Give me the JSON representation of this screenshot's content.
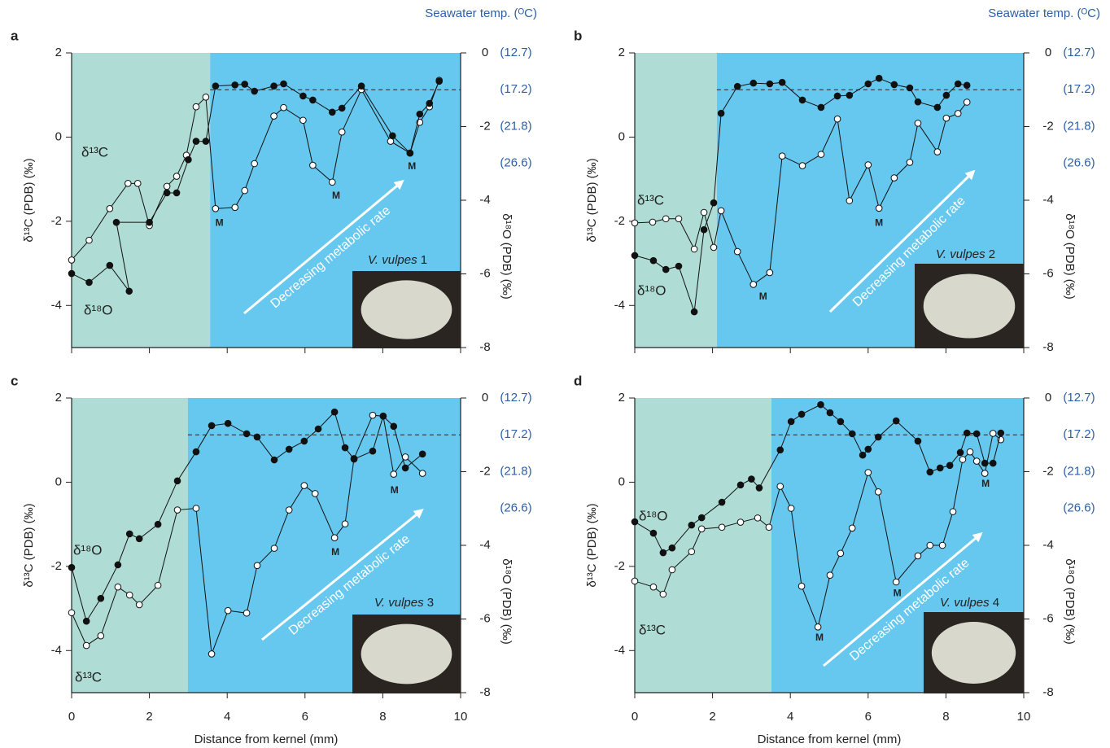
{
  "chart_data": [
    {
      "type": "line",
      "panel": "a",
      "y2title": "Seawater temp. (ᴼC)",
      "ylabel": "δ¹³C (PDB) (‰)",
      "y2label": "δ¹⁸O (PDB) (‰)",
      "xlim": [
        0,
        10
      ],
      "xticks": [
        0,
        2,
        4,
        6,
        8,
        10
      ],
      "xticklabels": false,
      "ylim": [
        -5,
        2
      ],
      "yticks": [
        -4,
        -2,
        0,
        2
      ],
      "y2lim": [
        -8,
        0
      ],
      "y2ticks": [
        -8,
        -6,
        -4,
        -2,
        0
      ],
      "temp_ticks": [
        {
          "value": 0,
          "label": "(12.7)"
        },
        {
          "value": -1,
          "label": "(17.2)"
        },
        {
          "value": -2,
          "label": "(21.8)"
        },
        {
          "value": -3,
          "label": "(26.6)"
        }
      ],
      "reference_line": {
        "value": -1,
        "axis": "y2"
      },
      "regions": [
        {
          "x": [
            0,
            3.56
          ],
          "color": "#afdcd4"
        },
        {
          "x": [
            3.56,
            10
          ],
          "color": "#66c7ef"
        }
      ],
      "series": [
        {
          "name": "δ¹³C",
          "marker": "open",
          "x": [
            0,
            0.45,
            0.98,
            1.45,
            1.7,
            2.0,
            2.45,
            2.7,
            2.95,
            3.2,
            3.45,
            3.7,
            4.2,
            4.45,
            4.7,
            5.2,
            5.45,
            5.95,
            6.2,
            6.7,
            6.95,
            7.45,
            8.2,
            8.7,
            8.95,
            9.2,
            9.45
          ],
          "values": [
            -2.92,
            -2.45,
            -1.7,
            -1.1,
            -1.1,
            -2.1,
            -1.17,
            -0.93,
            -0.43,
            0.72,
            0.95,
            -1.7,
            -1.67,
            -1.27,
            -0.63,
            0.5,
            0.7,
            0.4,
            -0.67,
            -1.07,
            0.12,
            1.13,
            -0.1,
            -0.38,
            0.35,
            0.72,
            1.35
          ]
        },
        {
          "name": "δ¹⁸O",
          "marker": "filled",
          "axis": "y2",
          "x": [
            0,
            0.45,
            0.98,
            1.48,
            1.15,
            2.0,
            2.45,
            2.7,
            3.0,
            3.2,
            3.45,
            3.7,
            4.2,
            4.45,
            4.7,
            5.2,
            5.45,
            5.95,
            6.2,
            6.7,
            6.95,
            7.45,
            8.25,
            8.7,
            8.95,
            9.2,
            9.45
          ],
          "values": [
            -5.99,
            -6.23,
            -5.77,
            -6.47,
            -4.6,
            -4.6,
            -3.8,
            -3.8,
            -2.9,
            -2.4,
            -2.4,
            -0.9,
            -0.87,
            -0.85,
            -1.04,
            -0.9,
            -0.84,
            -1.17,
            -1.28,
            -1.61,
            -1.5,
            -0.9,
            -2.25,
            -2.72,
            -1.66,
            -1.37,
            -0.77
          ]
        }
      ],
      "annotations": [
        {
          "text": "M",
          "x": 3.8,
          "y": -2.05
        },
        {
          "text": "M",
          "x": 6.8,
          "y": -1.4
        },
        {
          "text": "M",
          "x": 8.75,
          "y": -0.7
        }
      ],
      "arrow_text": "Decreasing metabolic rate",
      "specimen": "V. vulpes",
      "specimen_number": "1"
    },
    {
      "type": "line",
      "panel": "b",
      "y2title": "Seawater temp. (ᴼC)",
      "ylabel": "δ¹³C (PDB) (‰)",
      "y2label": "δ¹⁸O (PDB) (‰)",
      "xlim": [
        0,
        10
      ],
      "xticks": [
        0,
        2,
        4,
        6,
        8,
        10
      ],
      "xticklabels": false,
      "ylim": [
        -5,
        2
      ],
      "yticks": [
        -4,
        -2,
        0,
        2
      ],
      "y2lim": [
        -8,
        0
      ],
      "y2ticks": [
        -8,
        -6,
        -4,
        -2,
        0
      ],
      "temp_ticks": [
        {
          "value": 0,
          "label": "(12.7)"
        },
        {
          "value": -1,
          "label": "(17.2)"
        },
        {
          "value": -2,
          "label": "(21.8)"
        },
        {
          "value": -3,
          "label": "(26.6)"
        }
      ],
      "reference_line": {
        "value": -1,
        "axis": "y2"
      },
      "regions": [
        {
          "x": [
            0,
            2.11
          ],
          "color": "#afdcd4"
        },
        {
          "x": [
            2.11,
            10
          ],
          "color": "#66c7ef"
        }
      ],
      "series": [
        {
          "name": "δ¹³C",
          "marker": "open",
          "x": [
            0,
            0.46,
            0.8,
            1.13,
            1.53,
            1.78,
            2.03,
            2.22,
            2.64,
            3.05,
            3.47,
            3.79,
            4.31,
            4.79,
            5.21,
            5.52,
            6.0,
            6.28,
            6.67,
            7.07,
            7.28,
            7.78,
            8.01,
            8.31,
            8.54
          ],
          "values": [
            -2.04,
            -2.02,
            -1.94,
            -1.94,
            -2.66,
            -1.79,
            -2.62,
            -1.75,
            -2.72,
            -3.5,
            -3.22,
            -0.45,
            -0.68,
            -0.41,
            0.43,
            -1.51,
            -0.66,
            -1.69,
            -0.97,
            -0.6,
            0.33,
            -0.35,
            0.45,
            0.56,
            0.83
          ]
        },
        {
          "name": "δ¹⁸O",
          "marker": "filled",
          "axis": "y2",
          "x": [
            0,
            0.48,
            0.8,
            1.13,
            1.53,
            1.78,
            2.03,
            2.22,
            2.64,
            3.05,
            3.47,
            3.79,
            4.31,
            4.79,
            5.21,
            5.52,
            6.0,
            6.28,
            6.67,
            7.07,
            7.28,
            7.78,
            8.01,
            8.31,
            8.54
          ],
          "values": [
            -5.5,
            -5.64,
            -5.88,
            -5.79,
            -7.03,
            -4.8,
            -4.07,
            -1.64,
            -0.91,
            -0.82,
            -0.84,
            -0.8,
            -1.28,
            -1.48,
            -1.17,
            -1.15,
            -0.84,
            -0.69,
            -0.86,
            -0.95,
            -1.33,
            -1.48,
            -1.15,
            -0.84,
            -0.88
          ]
        }
      ],
      "annotations": [
        {
          "text": "M",
          "x": 3.3,
          "y": -3.8
        },
        {
          "text": "M",
          "x": 6.28,
          "y": -2.05
        }
      ],
      "arrow_text": "Decreasing metabolic rate",
      "specimen": "V. vulpes",
      "specimen_number": "2"
    },
    {
      "type": "line",
      "panel": "c",
      "xlabel": "Distance from kernel (mm)",
      "ylabel": "δ¹³C (PDB) (‰)",
      "y2label": "δ¹⁸O (PDB) (‰)",
      "xlim": [
        0,
        10
      ],
      "xticks": [
        0,
        2,
        4,
        6,
        8,
        10
      ],
      "xticklabels": true,
      "ylim": [
        -5,
        2
      ],
      "yticks": [
        -4,
        -2,
        0,
        2
      ],
      "y2lim": [
        -8,
        0
      ],
      "y2ticks": [
        -8,
        -6,
        -4,
        -2,
        0
      ],
      "temp_ticks": [
        {
          "value": 0,
          "label": "(12.7)"
        },
        {
          "value": -1,
          "label": "(17.2)"
        },
        {
          "value": -2,
          "label": "(21.8)"
        },
        {
          "value": -3,
          "label": "(26.6)"
        }
      ],
      "reference_line": {
        "value": -1,
        "axis": "y2"
      },
      "regions": [
        {
          "x": [
            0,
            2.99
          ],
          "color": "#afdcd4"
        },
        {
          "x": [
            2.99,
            10
          ],
          "color": "#66c7ef"
        }
      ],
      "series": [
        {
          "name": "δ¹³C",
          "marker": "open",
          "x": [
            0,
            0.38,
            0.75,
            1.19,
            1.49,
            1.74,
            2.22,
            2.72,
            3.2,
            3.6,
            4.02,
            4.5,
            4.77,
            5.21,
            5.59,
            5.98,
            6.26,
            6.76,
            7.03,
            7.26,
            7.74,
            8.01,
            8.28,
            8.58,
            9.02
          ],
          "values": [
            -3.1,
            -3.88,
            -3.65,
            -2.49,
            -2.68,
            -2.91,
            -2.45,
            -0.66,
            -0.62,
            -4.08,
            -3.05,
            -3.11,
            -1.98,
            -1.57,
            -0.66,
            -0.08,
            -0.27,
            -1.32,
            -0.99,
            0.56,
            1.59,
            1.57,
            0.19,
            0.6,
            0.21
          ]
        },
        {
          "name": "δ¹⁸O",
          "marker": "filled",
          "axis": "y2",
          "x": [
            0,
            0.38,
            0.75,
            1.19,
            1.49,
            1.74,
            2.22,
            2.72,
            3.2,
            3.6,
            4.02,
            4.5,
            4.77,
            5.21,
            5.59,
            5.98,
            6.34,
            6.76,
            7.03,
            7.26,
            7.74,
            8.01,
            8.28,
            8.58,
            9.02
          ],
          "values": [
            -4.6,
            -6.06,
            -5.44,
            -4.53,
            -3.69,
            -3.82,
            -3.43,
            -2.25,
            -1.46,
            -0.75,
            -0.69,
            -0.97,
            -1.06,
            -1.68,
            -1.39,
            -1.17,
            -0.84,
            -0.38,
            -1.35,
            -1.66,
            -1.44,
            -0.49,
            -0.77,
            -1.9,
            -1.52
          ]
        }
      ],
      "annotations": [
        {
          "text": "M",
          "x": 6.78,
          "y": -1.67
        },
        {
          "text": "M",
          "x": 8.3,
          "y": -0.2
        }
      ],
      "arrow_text": "Decreasing metabolic rate",
      "specimen": "V. vulpes",
      "specimen_number": "3"
    },
    {
      "type": "line",
      "panel": "d",
      "xlabel": "Distance from kernel (mm)",
      "ylabel": "δ¹³C (PDB) (‰)",
      "y2label": "δ¹⁸O (PDB) (‰)",
      "xlim": [
        0,
        10
      ],
      "xticks": [
        0,
        2,
        4,
        6,
        8,
        10
      ],
      "xticklabels": true,
      "ylim": [
        -5,
        2
      ],
      "yticks": [
        -4,
        -2,
        0,
        2
      ],
      "y2lim": [
        -8,
        0
      ],
      "y2ticks": [
        -8,
        -6,
        -4,
        -2,
        0
      ],
      "temp_ticks": [
        {
          "value": 0,
          "label": "(12.7)"
        },
        {
          "value": -1,
          "label": "(17.2)"
        },
        {
          "value": -2,
          "label": "(21.8)"
        },
        {
          "value": -3,
          "label": "(26.6)"
        }
      ],
      "reference_line": {
        "value": -1,
        "axis": "y2"
      },
      "regions": [
        {
          "x": [
            0,
            3.51
          ],
          "color": "#afdcd4"
        },
        {
          "x": [
            3.51,
            10
          ],
          "color": "#66c7ef"
        }
      ],
      "series": [
        {
          "name": "δ¹³C",
          "marker": "open",
          "x": [
            0,
            0.48,
            0.73,
            0.96,
            1.46,
            1.72,
            2.24,
            2.72,
            3.16,
            3.45,
            3.74,
            4.02,
            4.29,
            4.71,
            5.02,
            5.29,
            5.59,
            6.0,
            6.26,
            6.72,
            7.28,
            7.59,
            7.91,
            8.18,
            8.43,
            8.62,
            8.79,
            9.0,
            9.21,
            9.41
          ],
          "values": [
            -2.35,
            -2.49,
            -2.66,
            -2.08,
            -1.65,
            -1.11,
            -1.07,
            -0.95,
            -0.85,
            -1.07,
            -0.1,
            -0.62,
            -2.47,
            -3.44,
            -2.21,
            -1.69,
            -1.09,
            0.23,
            -0.23,
            -2.37,
            -1.75,
            -1.5,
            -1.5,
            -0.7,
            0.54,
            0.72,
            0.5,
            0.21,
            1.16,
            1.01
          ]
        },
        {
          "name": "δ¹⁸O",
          "marker": "filled",
          "axis": "y2",
          "x": [
            0,
            0.48,
            0.73,
            0.96,
            1.46,
            1.72,
            2.24,
            2.72,
            3.0,
            3.2,
            3.74,
            4.02,
            4.29,
            4.78,
            5.02,
            5.29,
            5.59,
            5.86,
            6.0,
            6.26,
            6.72,
            7.28,
            7.59,
            7.85,
            8.1,
            8.37,
            8.54,
            8.79,
            9.0,
            9.21,
            9.41
          ],
          "values": [
            -3.36,
            -3.67,
            -4.2,
            -4.07,
            -3.45,
            -3.25,
            -2.83,
            -2.36,
            -2.2,
            -2.44,
            -1.41,
            -0.64,
            -0.44,
            -0.18,
            -0.4,
            -0.64,
            -0.97,
            -1.55,
            -1.39,
            -1.06,
            -0.62,
            -1.17,
            -2.01,
            -1.9,
            -1.83,
            -1.48,
            -0.95,
            -0.97,
            -1.77,
            -1.77,
            -0.95
          ]
        }
      ],
      "annotations": [
        {
          "text": "M",
          "x": 4.75,
          "y": -3.7
        },
        {
          "text": "M",
          "x": 6.75,
          "y": -2.65
        },
        {
          "text": "M",
          "x": 9.02,
          "y": -0.05
        }
      ],
      "arrow_text": "Decreasing metabolic rate",
      "specimen": "V. vulpes",
      "specimen_number": "4"
    }
  ]
}
